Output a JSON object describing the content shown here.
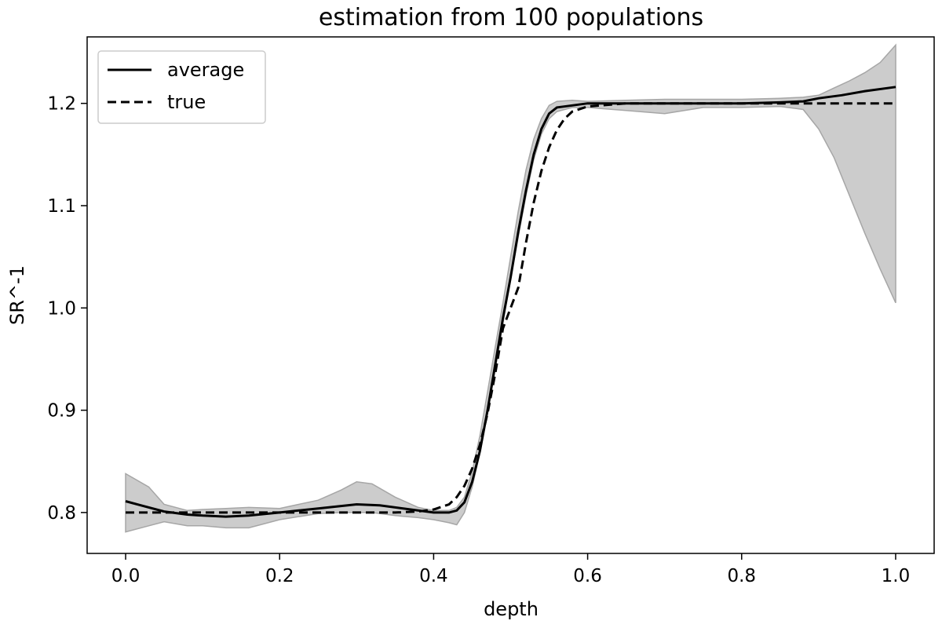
{
  "chart_data": {
    "type": "line",
    "title": "estimation from 100 populations",
    "xlabel": "depth",
    "ylabel": "SR^-1",
    "xlim": [
      -0.05,
      1.05
    ],
    "ylim": [
      0.76,
      1.265
    ],
    "grid": false,
    "legend_position": "top-left",
    "xticks": [
      0.0,
      0.2,
      0.4,
      0.6,
      0.8,
      1.0
    ],
    "xtick_labels": [
      "0.0",
      "0.2",
      "0.4",
      "0.6",
      "0.8",
      "1.0"
    ],
    "yticks": [
      0.8,
      0.9,
      1.0,
      1.1,
      1.2
    ],
    "ytick_labels": [
      "0.8",
      "0.9",
      "1.0",
      "1.1",
      "1.2"
    ],
    "series": [
      {
        "name": "average",
        "style": "solid",
        "color": "#000000",
        "x": [
          0.0,
          0.02,
          0.05,
          0.08,
          0.1,
          0.13,
          0.16,
          0.2,
          0.25,
          0.3,
          0.33,
          0.37,
          0.4,
          0.42,
          0.43,
          0.44,
          0.45,
          0.46,
          0.47,
          0.48,
          0.49,
          0.5,
          0.51,
          0.52,
          0.53,
          0.54,
          0.55,
          0.56,
          0.58,
          0.6,
          0.65,
          0.7,
          0.75,
          0.8,
          0.85,
          0.88,
          0.9,
          0.93,
          0.96,
          1.0
        ],
        "y": [
          0.811,
          0.807,
          0.801,
          0.798,
          0.797,
          0.796,
          0.797,
          0.8,
          0.804,
          0.808,
          0.807,
          0.803,
          0.8,
          0.8,
          0.802,
          0.81,
          0.83,
          0.86,
          0.9,
          0.945,
          0.99,
          1.03,
          1.075,
          1.115,
          1.15,
          1.175,
          1.19,
          1.196,
          1.198,
          1.2,
          1.2,
          1.2,
          1.2,
          1.2,
          1.201,
          1.202,
          1.205,
          1.208,
          1.212,
          1.216
        ]
      },
      {
        "name": "true",
        "style": "dashed",
        "color": "#000000",
        "x": [
          0.0,
          0.05,
          0.1,
          0.15,
          0.2,
          0.25,
          0.3,
          0.35,
          0.38,
          0.4,
          0.42,
          0.43,
          0.44,
          0.45,
          0.46,
          0.47,
          0.48,
          0.49,
          0.5,
          0.51,
          0.52,
          0.53,
          0.54,
          0.55,
          0.56,
          0.57,
          0.58,
          0.6,
          0.65,
          0.7,
          0.8,
          0.9,
          1.0
        ],
        "y": [
          0.8,
          0.8,
          0.8,
          0.8,
          0.8,
          0.8,
          0.8,
          0.8,
          0.801,
          0.803,
          0.808,
          0.815,
          0.826,
          0.843,
          0.866,
          0.897,
          0.936,
          0.98,
          1.0,
          1.02,
          1.064,
          1.103,
          1.134,
          1.157,
          1.174,
          1.185,
          1.192,
          1.197,
          1.2,
          1.2,
          1.2,
          1.2,
          1.2
        ]
      }
    ],
    "band": {
      "color": "#cccccc",
      "edge_color": "#a6a6a6",
      "x": [
        0.0,
        0.03,
        0.05,
        0.08,
        0.1,
        0.13,
        0.16,
        0.2,
        0.25,
        0.28,
        0.3,
        0.32,
        0.35,
        0.38,
        0.4,
        0.42,
        0.43,
        0.44,
        0.45,
        0.46,
        0.47,
        0.48,
        0.49,
        0.5,
        0.51,
        0.52,
        0.53,
        0.54,
        0.55,
        0.56,
        0.58,
        0.6,
        0.65,
        0.7,
        0.75,
        0.8,
        0.85,
        0.88,
        0.9,
        0.92,
        0.94,
        0.96,
        0.98,
        1.0
      ],
      "upper": [
        0.838,
        0.825,
        0.808,
        0.802,
        0.803,
        0.804,
        0.805,
        0.804,
        0.812,
        0.822,
        0.83,
        0.828,
        0.815,
        0.805,
        0.802,
        0.802,
        0.805,
        0.815,
        0.84,
        0.875,
        0.918,
        0.962,
        1.005,
        1.05,
        1.095,
        1.135,
        1.165,
        1.185,
        1.198,
        1.202,
        1.203,
        1.202,
        1.203,
        1.204,
        1.204,
        1.204,
        1.205,
        1.206,
        1.208,
        1.215,
        1.222,
        1.23,
        1.24,
        1.257
      ],
      "lower": [
        0.781,
        0.787,
        0.791,
        0.787,
        0.787,
        0.785,
        0.785,
        0.793,
        0.799,
        0.8,
        0.8,
        0.8,
        0.797,
        0.795,
        0.793,
        0.79,
        0.788,
        0.8,
        0.825,
        0.858,
        0.897,
        0.94,
        0.985,
        1.028,
        1.07,
        1.11,
        1.145,
        1.17,
        1.185,
        1.192,
        1.196,
        1.196,
        1.193,
        1.19,
        1.196,
        1.196,
        1.197,
        1.194,
        1.175,
        1.147,
        1.11,
        1.073,
        1.038,
        1.005
      ]
    }
  }
}
